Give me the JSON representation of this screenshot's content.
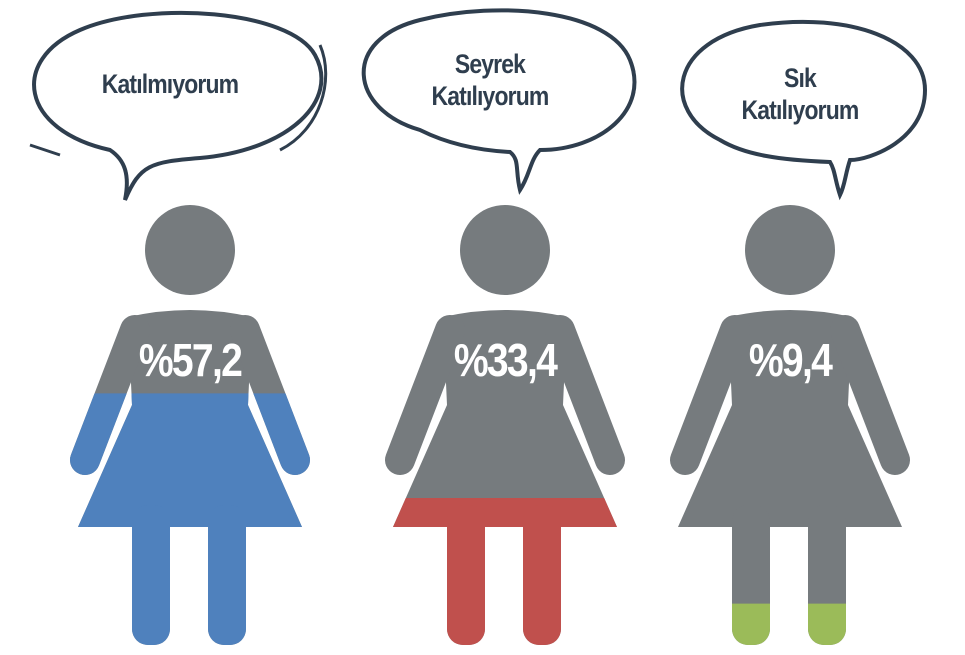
{
  "chart_data": {
    "type": "pictogram",
    "categories": [
      "Katılmıyorum",
      "Seyrek Katılıyorum",
      "Sık Katılıyorum"
    ],
    "values": [
      57.2,
      33.4,
      9.4
    ],
    "value_labels": [
      "%57,2",
      "%33,4",
      "%9,4"
    ],
    "colors": [
      "#4f81bd",
      "#c0504d",
      "#9bbb59"
    ],
    "base_color": "#767b7e"
  }
}
